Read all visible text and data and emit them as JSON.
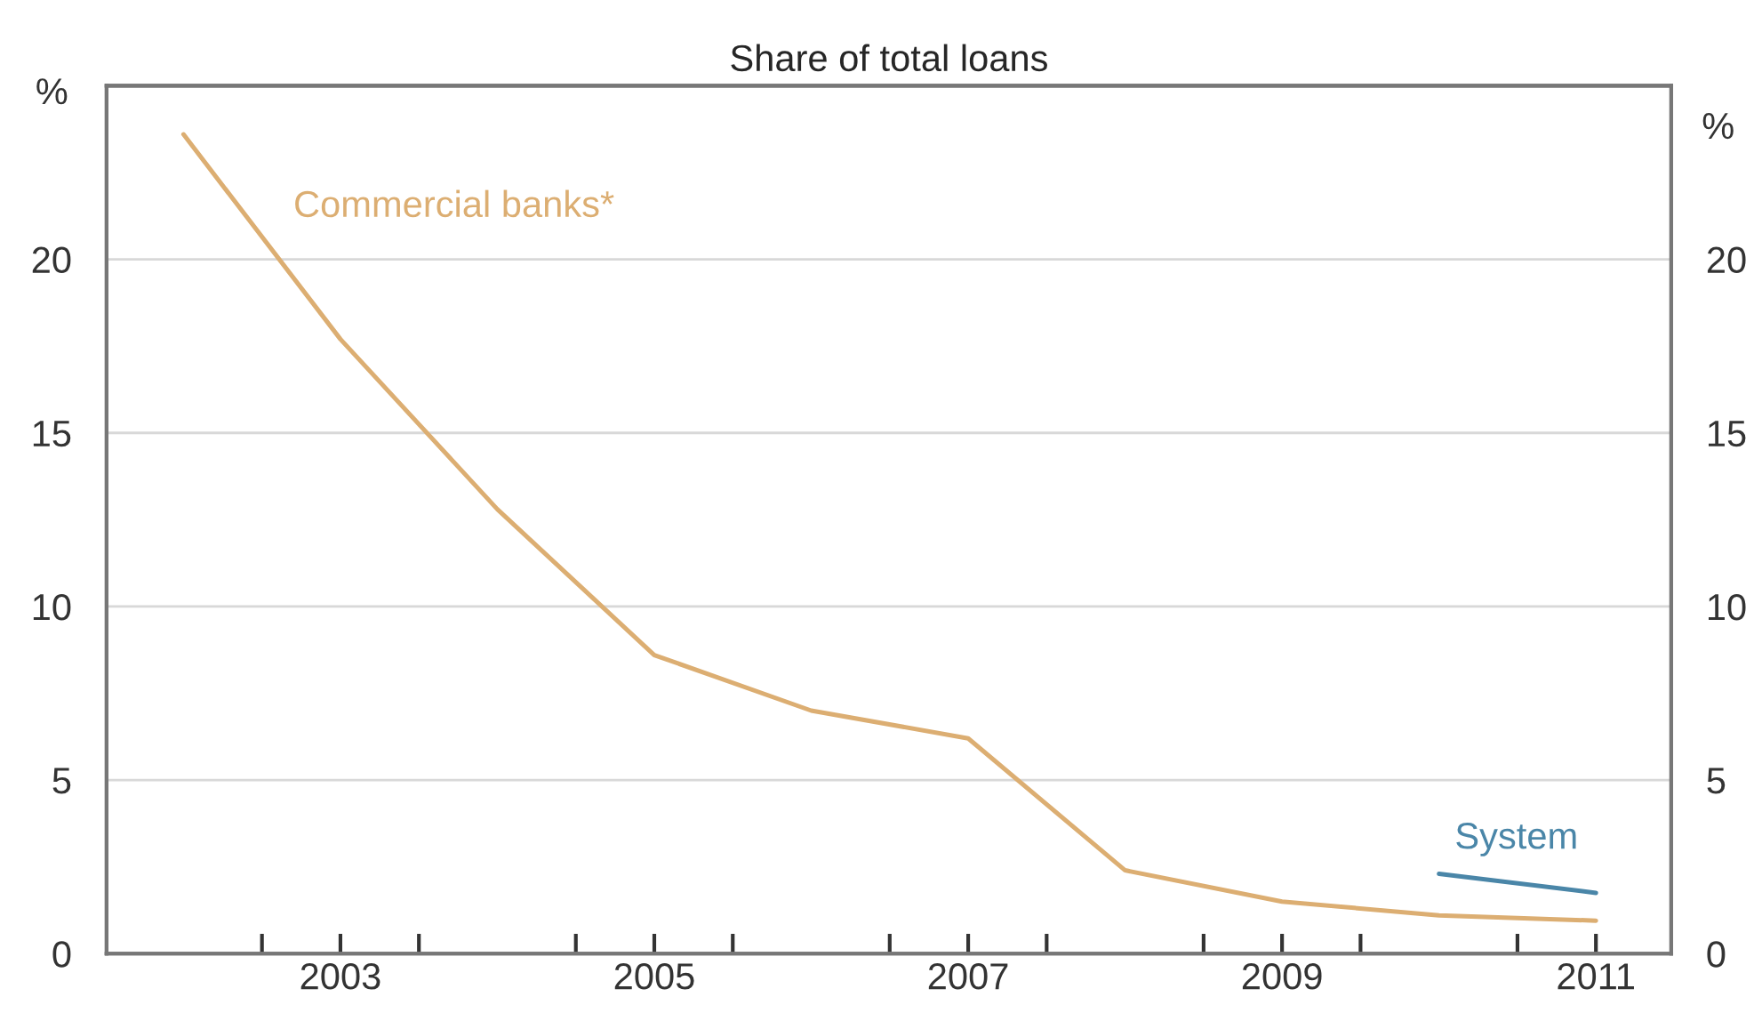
{
  "chart_data": {
    "type": "line",
    "title": "Share of total loans",
    "ylabel": "%",
    "y2label": "%",
    "series": [
      {
        "name": "Commercial banks*",
        "color": "#dcae72",
        "x": [
          2002.5,
          2003.5,
          2004.5,
          2005.5,
          2006.5,
          2007.5,
          2008.5,
          2009.5,
          2010.5,
          2011.5
        ],
        "values": [
          23.6,
          17.7,
          12.8,
          8.6,
          7.0,
          6.2,
          2.4,
          1.5,
          1.1,
          0.95
        ]
      },
      {
        "name": "System",
        "color": "#4a86a8",
        "x": [
          2010.5,
          2011.5
        ],
        "values": [
          2.3,
          1.75
        ]
      }
    ],
    "xlim": [
      2002.01,
      2011.98
    ],
    "xticks": [
      {
        "value": 2003,
        "label": null
      },
      {
        "value": 2003.5,
        "label": "2003"
      },
      {
        "value": 2004,
        "label": null
      },
      {
        "value": 2005,
        "label": null
      },
      {
        "value": 2005.5,
        "label": "2005"
      },
      {
        "value": 2006,
        "label": null
      },
      {
        "value": 2007,
        "label": null
      },
      {
        "value": 2007.5,
        "label": "2007"
      },
      {
        "value": 2008,
        "label": null
      },
      {
        "value": 2009,
        "label": null
      },
      {
        "value": 2009.5,
        "label": "2009"
      },
      {
        "value": 2010,
        "label": null
      },
      {
        "value": 2011,
        "label": null
      },
      {
        "value": 2011.5,
        "label": "2011"
      }
    ],
    "ylim": [
      0,
      25
    ],
    "yticks": [
      0,
      5,
      10,
      15,
      20
    ],
    "y2lim": [
      0,
      25
    ],
    "y2ticks": [
      0,
      5,
      10,
      15,
      20
    ],
    "grid": "y",
    "legend": false,
    "marker": "none",
    "line_style": "solid"
  }
}
